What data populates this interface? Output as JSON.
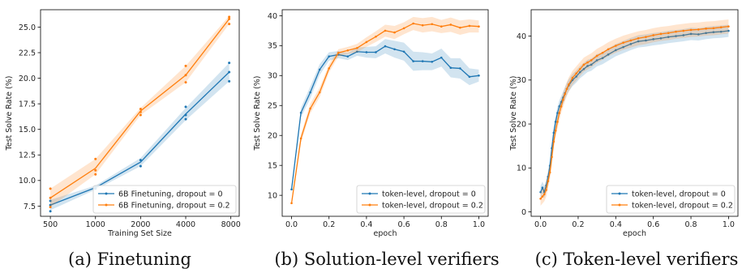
{
  "colors": {
    "blue": "#1f77b4",
    "orange": "#ff7f0e"
  },
  "chart_data": [
    {
      "type": "line",
      "caption": "(a) Finetuning",
      "xlabel": "Training Set Size",
      "ylabel": "Test Solve Rate (%)",
      "xscale": "log2",
      "xlim": [
        430,
        9100
      ],
      "ylim": [
        6.5,
        26.7
      ],
      "xticks": [
        500,
        1000,
        2000,
        4000,
        8000
      ],
      "xtick_labels": [
        "500",
        "1000",
        "2000",
        "4000",
        "8000"
      ],
      "yticks": [
        7.5,
        10.0,
        12.5,
        15.0,
        17.5,
        20.0,
        22.5,
        25.0
      ],
      "ytick_labels": [
        "7.5",
        "10.0",
        "12.5",
        "15.0",
        "17.5",
        "20.0",
        "22.5",
        "25.0"
      ],
      "legend": "lower-right",
      "series": [
        {
          "name": "6B Finetuning, dropout = 0",
          "color": "#1f77b4",
          "x": [
            500,
            1000,
            2000,
            4000,
            7800
          ],
          "y": [
            7.6,
            9.3,
            11.8,
            16.5,
            20.6
          ],
          "lower": [
            7.1,
            9.1,
            11.4,
            15.9,
            19.7
          ],
          "upper": [
            8.1,
            9.5,
            12.2,
            17.1,
            21.5
          ],
          "points": [
            [
              500,
              7.0
            ],
            [
              500,
              7.6
            ],
            [
              500,
              8.0
            ],
            [
              1000,
              9.2
            ],
            [
              1000,
              9.4
            ],
            [
              2000,
              11.4
            ],
            [
              2000,
              12.0
            ],
            [
              4000,
              16.0
            ],
            [
              4000,
              16.4
            ],
            [
              4000,
              17.2
            ],
            [
              7800,
              19.7
            ],
            [
              7800,
              20.6
            ],
            [
              7800,
              21.5
            ]
          ]
        },
        {
          "name": "6B Finetuning, dropout = 0.2",
          "color": "#ff7f0e",
          "x": [
            500,
            1000,
            2000,
            4000,
            7800
          ],
          "y": [
            8.3,
            11.2,
            16.8,
            20.3,
            25.8
          ],
          "lower": [
            7.4,
            10.6,
            16.4,
            19.6,
            25.3
          ],
          "upper": [
            9.2,
            12.1,
            17.1,
            21.2,
            26.1
          ],
          "points": [
            [
              500,
              7.4
            ],
            [
              500,
              8.3
            ],
            [
              500,
              9.2
            ],
            [
              1000,
              10.6
            ],
            [
              1000,
              11.0
            ],
            [
              1000,
              12.1
            ],
            [
              2000,
              16.4
            ],
            [
              2000,
              16.7
            ],
            [
              2000,
              17.0
            ],
            [
              4000,
              19.6
            ],
            [
              4000,
              20.3
            ],
            [
              4000,
              21.2
            ],
            [
              7800,
              25.3
            ],
            [
              7800,
              25.8
            ],
            [
              7800,
              26.0
            ]
          ]
        }
      ]
    },
    {
      "type": "line",
      "caption": "(b) Solution-level verifiers",
      "xlabel": "epoch",
      "ylabel": "Test Solve Rate (%)",
      "xscale": "linear",
      "xlim": [
        -0.05,
        1.05
      ],
      "ylim": [
        6.5,
        41.0
      ],
      "xticks": [
        0.0,
        0.2,
        0.4,
        0.6,
        0.8,
        1.0
      ],
      "xtick_labels": [
        "0.0",
        "0.2",
        "0.4",
        "0.6",
        "0.8",
        "1.0"
      ],
      "yticks": [
        10,
        15,
        20,
        25,
        30,
        35,
        40
      ],
      "ytick_labels": [
        "10",
        "15",
        "20",
        "25",
        "30",
        "35",
        "40"
      ],
      "legend": "lower-right",
      "series": [
        {
          "name": "token-level, dropout = 0",
          "color": "#1f77b4",
          "x": [
            0.0,
            0.05,
            0.1,
            0.15,
            0.2,
            0.25,
            0.3,
            0.35,
            0.4,
            0.45,
            0.5,
            0.55,
            0.6,
            0.65,
            0.7,
            0.75,
            0.8,
            0.85,
            0.9,
            0.95,
            1.0
          ],
          "y": [
            11.0,
            23.8,
            27.2,
            31.0,
            33.2,
            33.5,
            33.2,
            34.0,
            33.9,
            33.9,
            34.9,
            34.4,
            34.0,
            32.4,
            32.4,
            32.3,
            33.0,
            31.3,
            31.2,
            29.8,
            30.0
          ],
          "spread": [
            0.5,
            0.8,
            1.0,
            0.9,
            0.7,
            0.6,
            0.6,
            0.7,
            0.9,
            1.0,
            1.2,
            1.4,
            1.5,
            1.6,
            1.5,
            1.4,
            1.5,
            1.6,
            1.7,
            1.4,
            1.0
          ]
        },
        {
          "name": "token-level, dropout = 0.2",
          "color": "#ff7f0e",
          "x": [
            0.0,
            0.05,
            0.1,
            0.15,
            0.2,
            0.25,
            0.3,
            0.35,
            0.4,
            0.45,
            0.5,
            0.55,
            0.6,
            0.65,
            0.7,
            0.75,
            0.8,
            0.85,
            0.9,
            0.95,
            1.0
          ],
          "y": [
            8.7,
            19.5,
            24.5,
            27.2,
            31.2,
            33.8,
            34.2,
            34.6,
            35.6,
            36.5,
            37.5,
            37.2,
            37.9,
            38.7,
            38.4,
            38.6,
            38.2,
            38.5,
            38.0,
            38.3,
            38.2
          ],
          "spread": [
            0.4,
            0.7,
            0.8,
            0.8,
            0.7,
            0.6,
            0.6,
            0.7,
            0.8,
            0.9,
            1.0,
            1.1,
            1.0,
            1.1,
            1.2,
            1.2,
            1.1,
            1.2,
            1.2,
            1.1,
            1.0
          ]
        }
      ]
    },
    {
      "type": "line",
      "caption": "(c) Token-level verifiers",
      "xlabel": "epoch",
      "ylabel": "Test Solve Rate (%)",
      "xscale": "linear",
      "xlim": [
        -0.05,
        1.05
      ],
      "ylim": [
        -1.0,
        46.0
      ],
      "xticks": [
        0.0,
        0.2,
        0.4,
        0.6,
        0.8,
        1.0
      ],
      "xtick_labels": [
        "0.0",
        "0.2",
        "0.4",
        "0.6",
        "0.8",
        "1.0"
      ],
      "yticks": [
        0,
        10,
        20,
        30,
        40
      ],
      "ytick_labels": [
        "0",
        "10",
        "20",
        "30",
        "40"
      ],
      "legend": "lower-right",
      "series": [
        {
          "name": "token-level, dropout = 0",
          "color": "#1f77b4",
          "x": [
            0.0,
            0.01,
            0.02,
            0.03,
            0.04,
            0.05,
            0.06,
            0.07,
            0.08,
            0.09,
            0.1,
            0.11,
            0.12,
            0.13,
            0.14,
            0.15,
            0.17,
            0.19,
            0.21,
            0.23,
            0.25,
            0.27,
            0.3,
            0.33,
            0.36,
            0.4,
            0.44,
            0.48,
            0.52,
            0.56,
            0.6,
            0.64,
            0.68,
            0.72,
            0.76,
            0.8,
            0.84,
            0.88,
            0.92,
            0.96,
            1.0
          ],
          "y": [
            4.5,
            5.5,
            4.5,
            6.0,
            8.0,
            10.5,
            14.5,
            18.0,
            20.5,
            22.5,
            24.0,
            25.0,
            26.0,
            27.0,
            28.0,
            28.8,
            30.0,
            30.8,
            31.8,
            32.5,
            33.2,
            33.5,
            34.5,
            35.0,
            35.8,
            36.8,
            37.5,
            38.2,
            38.8,
            39.0,
            39.3,
            39.5,
            39.8,
            40.0,
            40.2,
            40.5,
            40.4,
            40.7,
            40.9,
            41.0,
            41.2
          ],
          "spread": 1.4
        },
        {
          "name": "token-level, dropout = 0.2",
          "color": "#ff7f0e",
          "x": [
            0.0,
            0.01,
            0.02,
            0.03,
            0.04,
            0.05,
            0.06,
            0.07,
            0.08,
            0.09,
            0.1,
            0.11,
            0.12,
            0.13,
            0.14,
            0.15,
            0.17,
            0.19,
            0.21,
            0.23,
            0.25,
            0.27,
            0.3,
            0.33,
            0.36,
            0.4,
            0.44,
            0.48,
            0.52,
            0.56,
            0.6,
            0.64,
            0.68,
            0.72,
            0.76,
            0.8,
            0.84,
            0.88,
            0.92,
            0.96,
            1.0
          ],
          "y": [
            3.0,
            3.5,
            4.0,
            5.0,
            7.0,
            9.0,
            12.5,
            16.0,
            18.5,
            20.5,
            22.5,
            24.0,
            25.5,
            26.8,
            28.0,
            29.0,
            30.5,
            31.5,
            32.5,
            33.5,
            34.0,
            34.5,
            35.5,
            36.2,
            37.0,
            37.8,
            38.5,
            39.0,
            39.5,
            39.8,
            40.2,
            40.5,
            40.7,
            41.0,
            41.2,
            41.4,
            41.5,
            41.7,
            41.8,
            42.0,
            42.2
          ],
          "spread": 1.6
        }
      ]
    }
  ]
}
